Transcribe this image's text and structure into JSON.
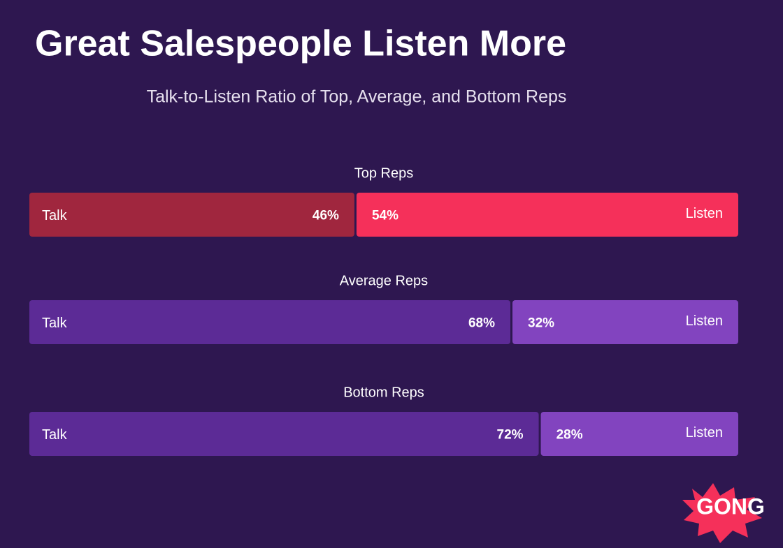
{
  "chart_data": {
    "type": "stacked_bar",
    "orientation": "horizontal",
    "title": "Great Salespeople Listen More",
    "subtitle": "Talk-to-Listen Ratio of Top, Average, and Bottom Reps",
    "categories": [
      "Top Reps",
      "Average Reps",
      "Bottom Reps"
    ],
    "series": [
      {
        "name": "Talk",
        "colors": [
          "#a0263e",
          "#5c2b96",
          "#5c2b96"
        ],
        "values": [
          46,
          68,
          72
        ],
        "value_labels": [
          "46%",
          "68%",
          "72%"
        ]
      },
      {
        "name": "Listen",
        "colors": [
          "#f5305a",
          "#8244bf",
          "#8244bf"
        ],
        "values": [
          54,
          32,
          28
        ],
        "value_labels": [
          "54%",
          "32%",
          "28%"
        ]
      }
    ]
  },
  "logo": "GONG"
}
